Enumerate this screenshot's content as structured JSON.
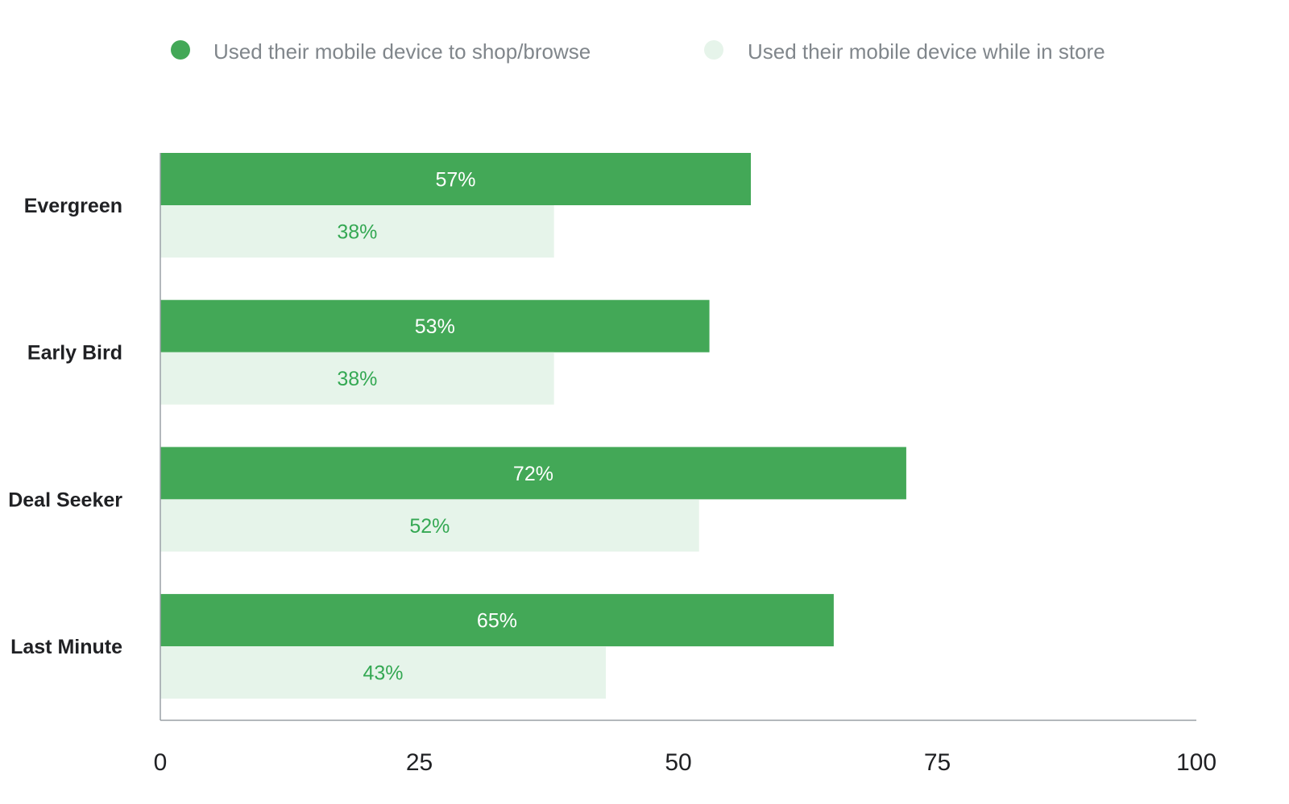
{
  "chart_data": {
    "type": "bar",
    "orientation": "horizontal",
    "categories": [
      "Evergreen",
      "Early Bird",
      "Deal Seeker",
      "Last Minute"
    ],
    "series": [
      {
        "name": "Used their mobile device to shop/browse",
        "values": [
          57,
          53,
          72,
          65
        ],
        "color": "#43a857",
        "label_color": "#ffffff"
      },
      {
        "name": "Used their mobile device while in store",
        "values": [
          38,
          38,
          52,
          43
        ],
        "color": "#e6f4ea",
        "label_color": "#34a853"
      }
    ],
    "data_labels": [
      [
        "57%",
        "53%",
        "72%",
        "65%"
      ],
      [
        "38%",
        "38%",
        "52%",
        "43%"
      ]
    ],
    "xlim": [
      0,
      100
    ],
    "xticks": [
      "0",
      "25",
      "50",
      "75",
      "100"
    ],
    "title": "",
    "xlabel": "",
    "ylabel": "",
    "grid": false,
    "legend_position": "top"
  }
}
